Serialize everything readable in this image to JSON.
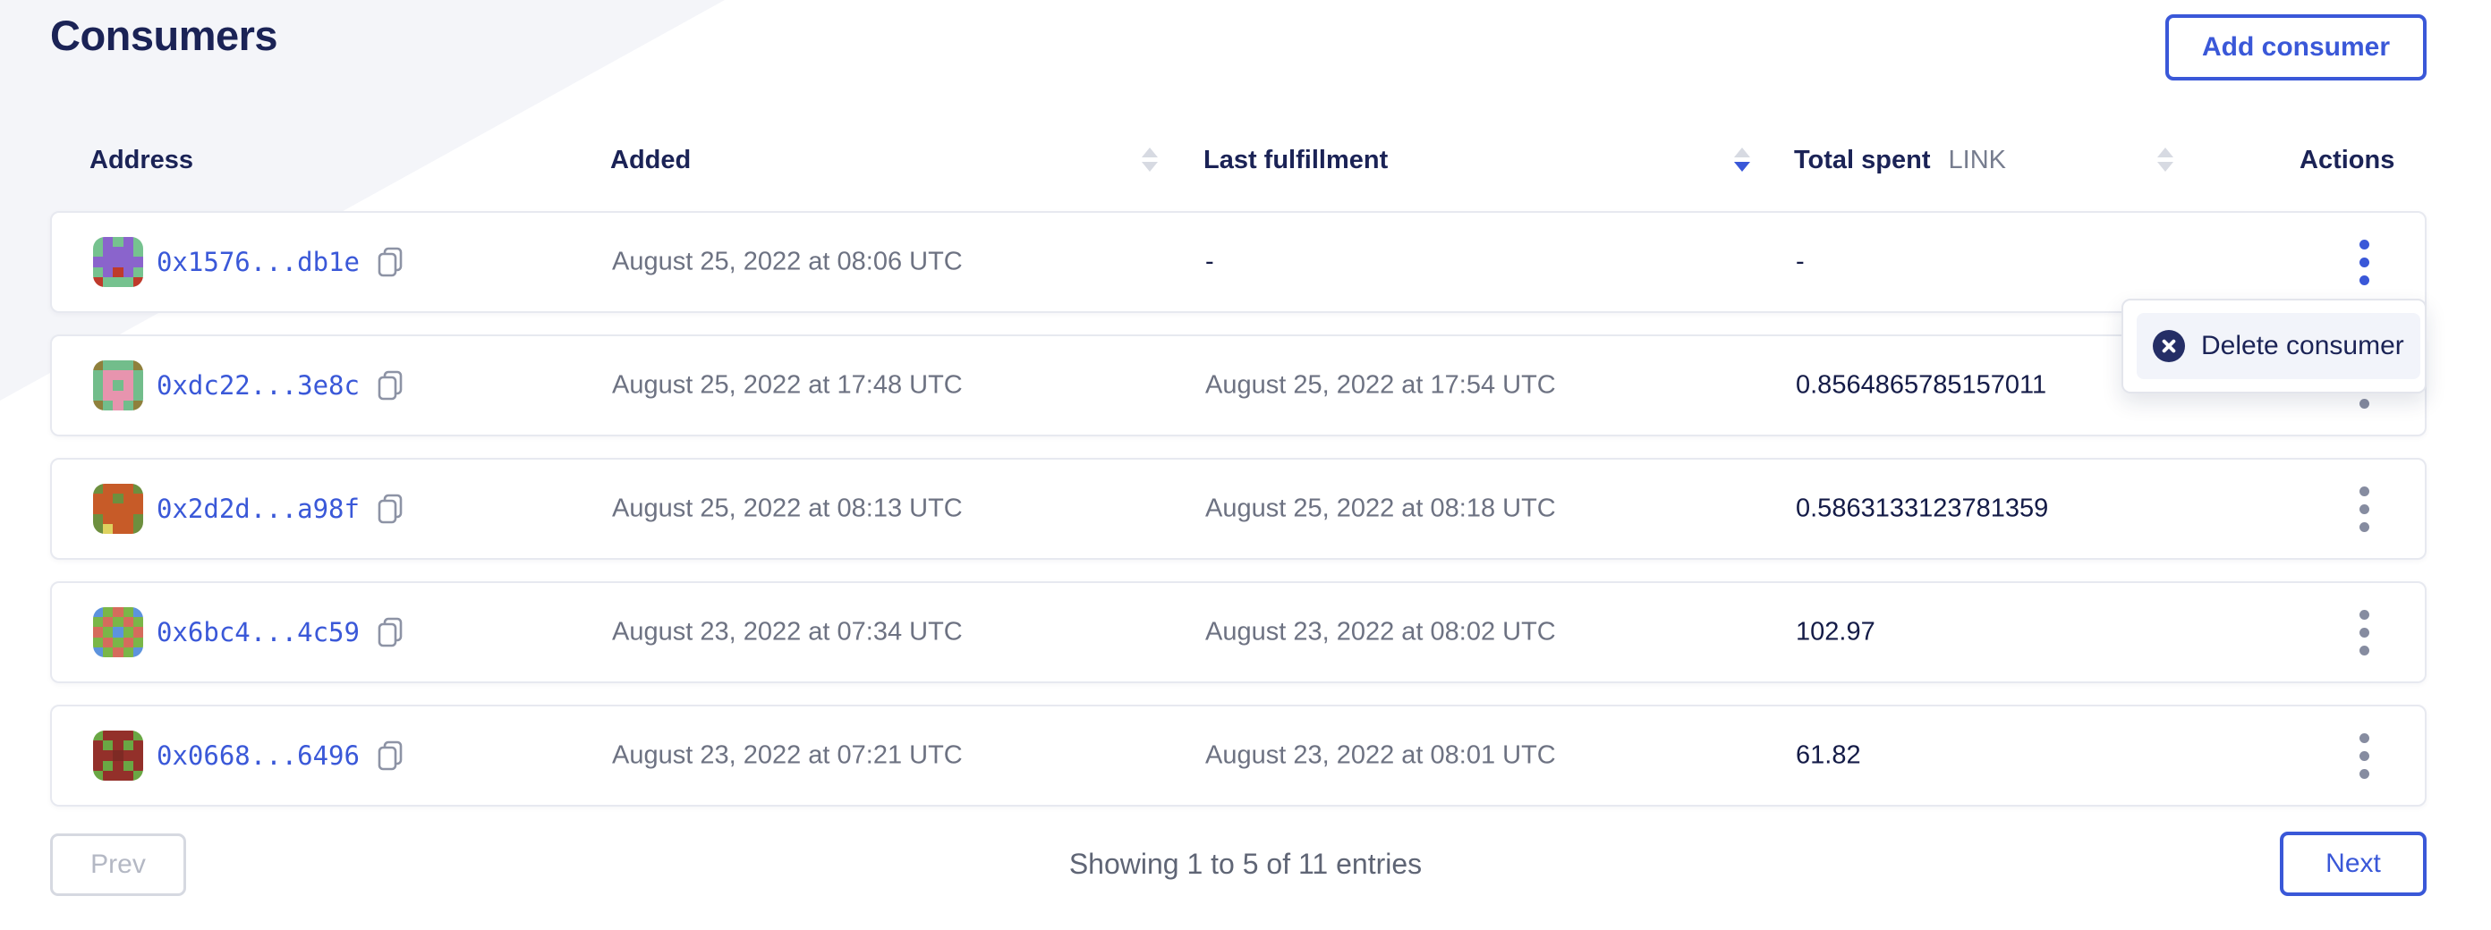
{
  "page": {
    "title": "Consumers",
    "add_button_label": "Add consumer"
  },
  "table": {
    "headers": {
      "address": "Address",
      "added": "Added",
      "last_fulfillment": "Last fulfillment",
      "total_spent": "Total spent",
      "total_spent_unit": "LINK",
      "actions": "Actions"
    },
    "sort": {
      "active_column": "last_fulfillment",
      "direction": "desc"
    },
    "rows": [
      {
        "address": "0x1576...db1e",
        "added": "August 25, 2022 at 08:06 UTC",
        "last_fulfillment": "-",
        "total_spent": "-",
        "avatar": {
          "colors": [
            "#76c28f",
            "#8a64cc",
            "#bf3a2b"
          ],
          "pattern": [
            "01010",
            "01110",
            "11111",
            "01210",
            "20002"
          ]
        }
      },
      {
        "address": "0xdc22...3e8c",
        "added": "August 25, 2022 at 17:48 UTC",
        "last_fulfillment": "August 25, 2022 at 17:54 UTC",
        "total_spent": "0.8564865785157011",
        "avatar": {
          "colors": [
            "#72bd8b",
            "#e794ae",
            "#8f803c"
          ],
          "pattern": [
            "20002",
            "01110",
            "01010",
            "01110",
            "20102"
          ]
        }
      },
      {
        "address": "0x2d2d...a98f",
        "added": "August 25, 2022 at 08:13 UTC",
        "last_fulfillment": "August 25, 2022 at 08:18 UTC",
        "total_spent": "0.5863133123781359",
        "avatar": {
          "colors": [
            "#6d8f3e",
            "#c75b28",
            "#ded25f"
          ],
          "pattern": [
            "01110",
            "11011",
            "11111",
            "01110",
            "02110"
          ]
        }
      },
      {
        "address": "0x6bc4...4c59",
        "added": "August 23, 2022 at 07:34 UTC",
        "last_fulfillment": "August 23, 2022 at 08:02 UTC",
        "total_spent": "102.97",
        "avatar": {
          "colors": [
            "#5d93dd",
            "#d56c5c",
            "#7ab648"
          ],
          "pattern": [
            "02120",
            "21212",
            "12021",
            "21212",
            "02120"
          ]
        }
      },
      {
        "address": "0x0668...6496",
        "added": "August 23, 2022 at 07:21 UTC",
        "last_fulfillment": "August 23, 2022 at 08:01 UTC",
        "total_spent": "61.82",
        "avatar": {
          "colors": [
            "#93302a",
            "#7e2a24",
            "#6aa744"
          ],
          "pattern": [
            "20002",
            "02020",
            "00100",
            "02020",
            "20002"
          ]
        }
      }
    ]
  },
  "actions_menu": {
    "open_row_index": 0,
    "delete_label": "Delete consumer"
  },
  "pagination": {
    "prev_label": "Prev",
    "status": "Showing 1 to 5 of 11 entries",
    "next_label": "Next"
  },
  "colors": {
    "accent": "#3a58d8",
    "navy": "#1b2356",
    "text_gray": "#6d7282",
    "triangle_bg": "#f4f5f9",
    "sort_inactive": "#d7dae2",
    "row_border": "#e7e9f0",
    "menu_item_bg": "#f2f4fa"
  }
}
